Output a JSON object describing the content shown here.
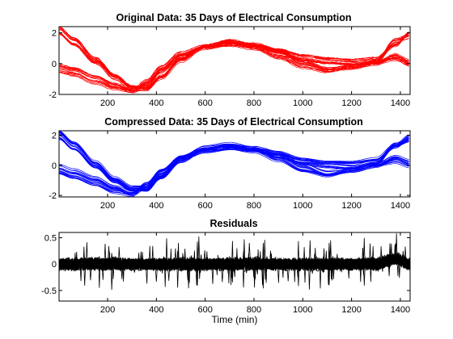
{
  "chart_data": [
    {
      "type": "line",
      "title": "Original Data: 35 Days of Electrical Consumption",
      "xlabel": "",
      "ylabel": "",
      "xlim": [
        1,
        1440
      ],
      "ylim": [
        -2,
        2.4
      ],
      "xticks": [
        200,
        400,
        600,
        800,
        1000,
        1200,
        1400
      ],
      "yticks": [
        -2,
        0,
        2
      ],
      "grid": false,
      "color": "#ff0000",
      "n_series": 35,
      "noise": 0.05,
      "profile_groups": [
        {
          "count": 9,
          "x": [
            1,
            60,
            150,
            230,
            300,
            360,
            420,
            500,
            600,
            700,
            800,
            900,
            1000,
            1100,
            1200,
            1300,
            1380,
            1440
          ],
          "y": [
            2.3,
            1.6,
            0.3,
            -0.8,
            -1.5,
            -1.6,
            -0.9,
            0.2,
            1.1,
            1.4,
            1.2,
            0.9,
            0.5,
            0.3,
            0.2,
            0.3,
            1.2,
            2.0
          ]
        },
        {
          "count": 9,
          "x": [
            1,
            60,
            150,
            230,
            300,
            360,
            420,
            500,
            600,
            700,
            800,
            900,
            1000,
            1100,
            1200,
            1300,
            1380,
            1440
          ],
          "y": [
            2.0,
            1.3,
            0.1,
            -0.9,
            -1.6,
            -1.6,
            -0.8,
            0.4,
            1.2,
            1.5,
            1.1,
            0.7,
            0.3,
            0.1,
            0.0,
            0.1,
            1.5,
            1.8
          ]
        },
        {
          "count": 9,
          "x": [
            1,
            60,
            150,
            230,
            300,
            360,
            420,
            500,
            600,
            700,
            800,
            900,
            1000,
            1100,
            1200,
            1300,
            1380,
            1440
          ],
          "y": [
            -0.2,
            -0.4,
            -0.9,
            -1.4,
            -1.8,
            -1.4,
            -0.5,
            0.5,
            1.0,
            1.2,
            1.2,
            0.8,
            0.1,
            -0.4,
            -0.3,
            0.0,
            0.5,
            0.1
          ]
        },
        {
          "count": 8,
          "x": [
            1,
            60,
            150,
            230,
            300,
            360,
            420,
            500,
            600,
            700,
            800,
            900,
            1000,
            1100,
            1200,
            1300,
            1380,
            1440
          ],
          "y": [
            -0.5,
            -0.7,
            -1.2,
            -1.6,
            -1.8,
            -1.2,
            -0.3,
            0.6,
            1.1,
            1.3,
            1.0,
            0.4,
            -0.2,
            -0.5,
            -0.2,
            0.1,
            0.3,
            -0.1
          ]
        }
      ]
    },
    {
      "type": "line",
      "title": "Compressed Data: 35 Days of Electrical Consumption",
      "xlabel": "",
      "ylabel": "",
      "xlim": [
        1,
        1440
      ],
      "ylim": [
        -2.1,
        2.3
      ],
      "xticks": [
        200,
        400,
        600,
        800,
        1000,
        1200,
        1400
      ],
      "yticks": [
        -2,
        0,
        2
      ],
      "grid": false,
      "color": "#0000ff",
      "n_series": 35,
      "noise": 0.0,
      "profile_groups": [
        {
          "count": 9,
          "x": [
            1,
            60,
            150,
            230,
            300,
            360,
            420,
            500,
            600,
            700,
            800,
            900,
            1000,
            1100,
            1200,
            1300,
            1380,
            1440
          ],
          "y": [
            2.2,
            1.5,
            0.2,
            -0.9,
            -1.5,
            -1.5,
            -0.8,
            0.3,
            1.1,
            1.3,
            1.1,
            0.8,
            0.4,
            0.2,
            0.2,
            0.4,
            1.3,
            1.9
          ]
        },
        {
          "count": 9,
          "x": [
            1,
            60,
            150,
            230,
            300,
            360,
            420,
            500,
            600,
            700,
            800,
            900,
            1000,
            1100,
            1200,
            1300,
            1380,
            1440
          ],
          "y": [
            1.9,
            1.2,
            0.0,
            -1.0,
            -1.6,
            -1.6,
            -0.7,
            0.5,
            1.2,
            1.4,
            1.1,
            0.6,
            0.2,
            0.0,
            -0.1,
            0.2,
            1.4,
            1.7
          ]
        },
        {
          "count": 9,
          "x": [
            1,
            60,
            150,
            230,
            300,
            360,
            420,
            500,
            600,
            700,
            800,
            900,
            1000,
            1100,
            1200,
            1300,
            1380,
            1440
          ],
          "y": [
            -0.1,
            -0.4,
            -0.9,
            -1.5,
            -1.9,
            -1.4,
            -0.5,
            0.5,
            1.0,
            1.2,
            1.1,
            0.7,
            0.0,
            -0.5,
            -0.3,
            0.0,
            0.5,
            0.2
          ]
        },
        {
          "count": 8,
          "x": [
            1,
            60,
            150,
            230,
            300,
            360,
            420,
            500,
            600,
            700,
            800,
            900,
            1000,
            1100,
            1200,
            1300,
            1380,
            1440
          ],
          "y": [
            -0.4,
            -0.7,
            -1.2,
            -1.7,
            -1.9,
            -1.2,
            -0.3,
            0.6,
            1.1,
            1.2,
            1.0,
            0.4,
            -0.3,
            -0.6,
            -0.2,
            0.1,
            0.3,
            0.0
          ]
        }
      ]
    },
    {
      "type": "line",
      "title": "Residuals",
      "xlabel": "Time (min)",
      "ylabel": "",
      "xlim": [
        1,
        1440
      ],
      "ylim": [
        -0.7,
        0.6
      ],
      "xticks": [
        200,
        400,
        600,
        800,
        1000,
        1200,
        1400
      ],
      "yticks": [
        -0.5,
        0,
        0.5
      ],
      "grid": false,
      "color": "#000000",
      "n_series": 35,
      "noise": 0.08,
      "profile_groups": [
        {
          "count": 35,
          "x": [
            1,
            100,
            200,
            300,
            400,
            500,
            600,
            700,
            800,
            900,
            1000,
            1100,
            1200,
            1300,
            1380,
            1440
          ],
          "y": [
            0.0,
            0.0,
            0.0,
            0.0,
            0.0,
            0.0,
            0.0,
            0.0,
            0.0,
            0.0,
            0.0,
            0.0,
            0.0,
            0.0,
            0.1,
            0.0
          ]
        }
      ]
    }
  ]
}
